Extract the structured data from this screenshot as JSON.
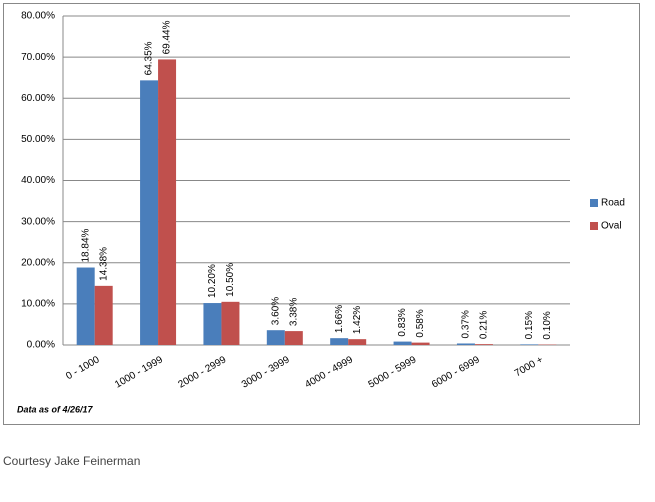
{
  "chart_data": {
    "type": "bar",
    "categories": [
      "0 - 1000",
      "1000 - 1999",
      "2000 - 2999",
      "3000 - 3999",
      "4000 - 4999",
      "5000 - 5999",
      "6000 - 6999",
      "7000 +"
    ],
    "series": [
      {
        "name": "Road",
        "color": "#4a7ebb",
        "values": [
          18.84,
          64.35,
          10.2,
          3.6,
          1.66,
          0.83,
          0.37,
          0.15
        ],
        "value_labels": [
          "18.84%",
          "64.35%",
          "10.20%",
          "3.60%",
          "1.66%",
          "0.83%",
          "0.37%",
          "0.15%"
        ]
      },
      {
        "name": "Oval",
        "color": "#c0504d",
        "values": [
          14.38,
          69.44,
          10.5,
          3.38,
          1.42,
          0.58,
          0.21,
          0.1
        ],
        "value_labels": [
          "14.38%",
          "69.44%",
          "10.50%",
          "3.38%",
          "1.42%",
          "0.58%",
          "0.21%",
          "0.10%"
        ]
      }
    ],
    "ylim": [
      0,
      80
    ],
    "yticks": [
      {
        "value": 0,
        "label": "0.00%"
      },
      {
        "value": 10,
        "label": "10.00%"
      },
      {
        "value": 20,
        "label": "20.00%"
      },
      {
        "value": 30,
        "label": "30.00%"
      },
      {
        "value": 40,
        "label": "40.00%"
      },
      {
        "value": 50,
        "label": "50.00%"
      },
      {
        "value": 60,
        "label": "60.00%"
      },
      {
        "value": 70,
        "label": "70.00%"
      },
      {
        "value": 80,
        "label": "80.00%"
      }
    ],
    "grid": true,
    "legend": "right",
    "note": "Data as of 4/26/17"
  },
  "caption": "Courtesy Jake Feinerman"
}
